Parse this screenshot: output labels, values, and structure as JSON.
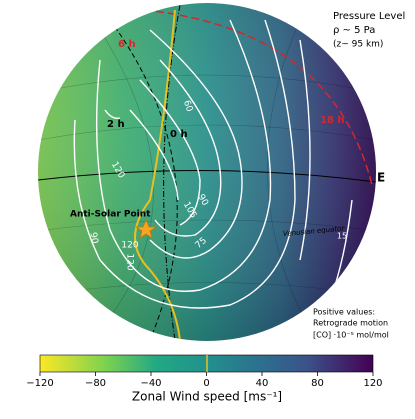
{
  "chart_data": {
    "type": "colorbar",
    "xlabel": "Zonal Wind speed [ms⁻¹]",
    "xlim": [
      -120,
      120
    ],
    "xticks": [
      {
        "value": -120,
        "label": "−120"
      },
      {
        "value": -80,
        "label": "−80"
      },
      {
        "value": -40,
        "label": "−40"
      },
      0,
      40,
      80,
      120
    ],
    "annotations": [
      "Pressure Level",
      "ρ ~ 5 Pa",
      "(z~ 95 km)",
      "6 h",
      "2 h",
      "0 h",
      "18 h",
      "E",
      "Anti-Solar Point",
      "Venusian equator",
      "Positive values:",
      "Retrograde motion",
      "[CO] ·10⁻⁵ mol/mol",
      "60",
      "90",
      "105",
      "120",
      "90",
      "75",
      "120",
      "15",
      "120"
    ]
  }
}
